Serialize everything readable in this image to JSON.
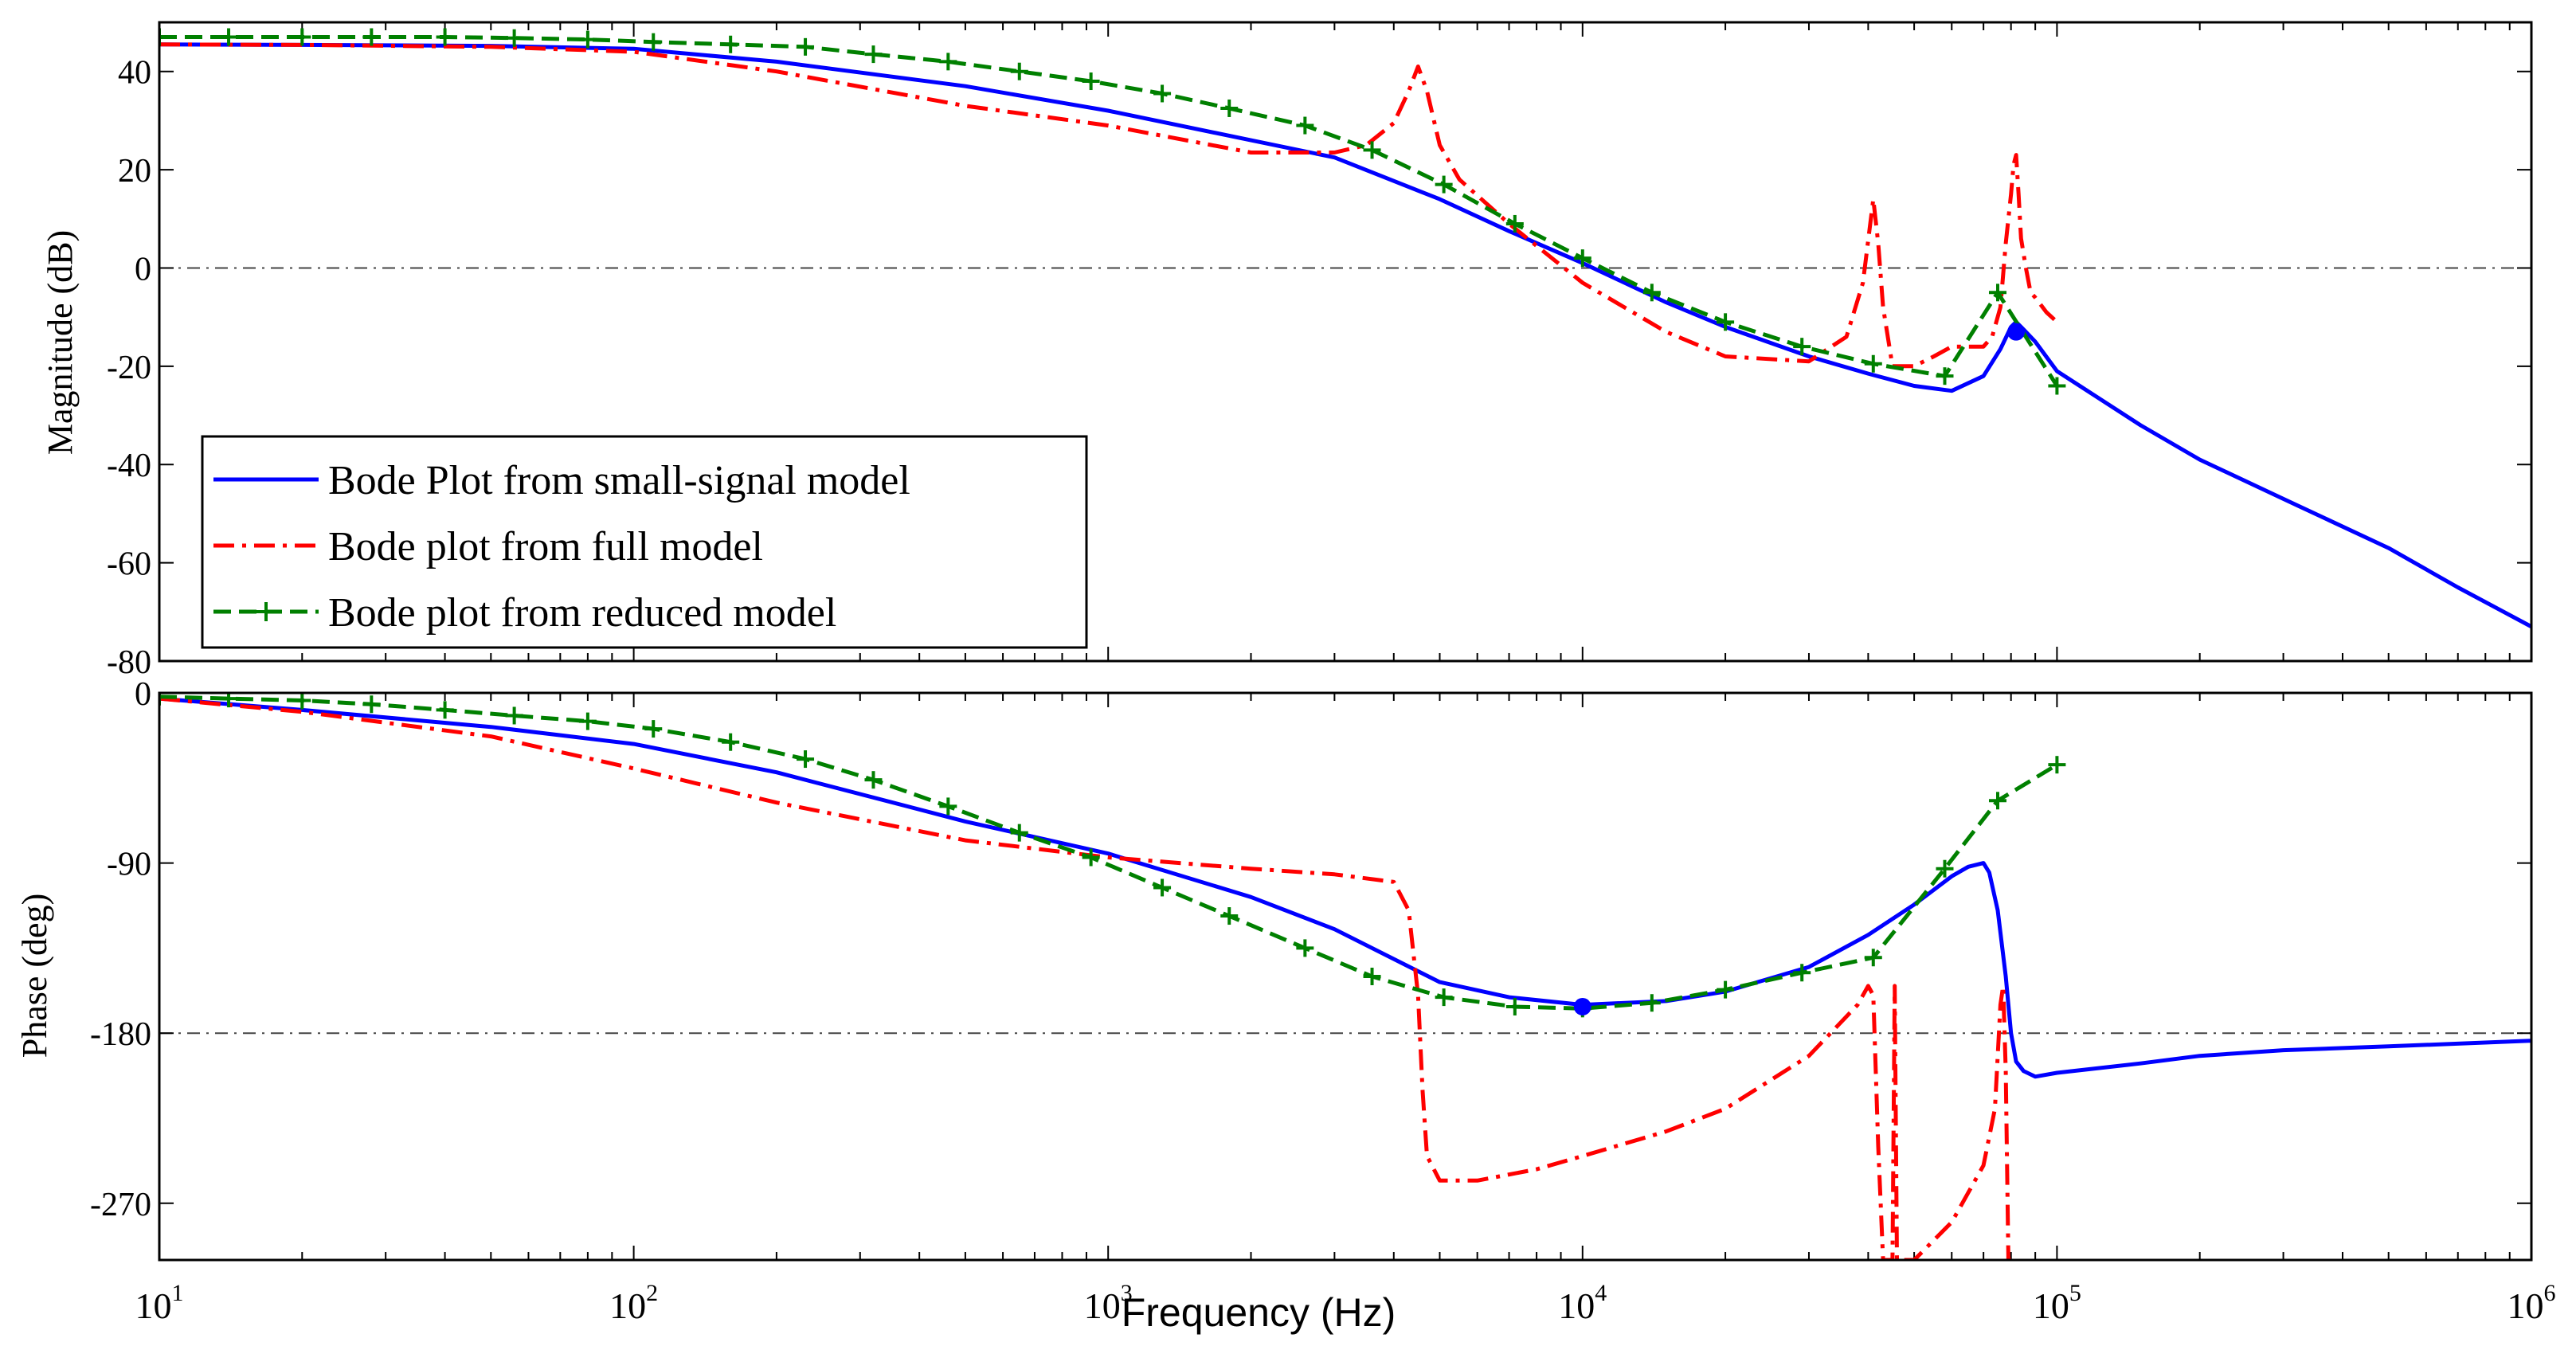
{
  "chart_data": [
    {
      "type": "line",
      "panel": "magnitude",
      "ylabel": "Magnitude (dB)",
      "ylim": [
        -80,
        50
      ],
      "yticks": [
        40,
        20,
        0,
        -20,
        -40,
        -60,
        -80
      ],
      "yticklabels": [
        "40",
        "20",
        "0",
        "-20",
        "-40",
        "-60",
        "-80"
      ],
      "reference_line": 0,
      "marker_point": {
        "x": 82000,
        "y": -13
      },
      "legend": {
        "placement": "bottom-left",
        "entries": [
          "Bode Plot from small-signal model",
          "Bode plot from full model",
          "Bode plot from reduced model"
        ]
      },
      "series": [
        {
          "name": "Bode Plot from small-signal model",
          "color": "#0000ff",
          "style": "solid",
          "x": [
            10,
            20,
            50,
            100,
            200,
            500,
            1000,
            2000,
            3000,
            5000,
            7000,
            10000,
            15000,
            20000,
            30000,
            40000,
            50000,
            60000,
            70000,
            76000,
            80000,
            82000,
            85000,
            90000,
            100000,
            150000,
            200000,
            300000,
            500000,
            700000,
            1000000
          ],
          "y": [
            45.5,
            45.4,
            45.2,
            44.6,
            42,
            37,
            32,
            26,
            22.5,
            14,
            7.5,
            1,
            -7,
            -12,
            -18,
            -21.5,
            -24,
            -25,
            -22,
            -16.5,
            -12,
            -11,
            -12.5,
            -15,
            -21,
            -32,
            -39,
            -47,
            -57,
            -65,
            -73
          ]
        },
        {
          "name": "Bode plot from full model",
          "color": "#ff0000",
          "style": "dashdot",
          "x": [
            10,
            20,
            50,
            100,
            200,
            500,
            1000,
            2000,
            3000,
            3500,
            4000,
            4300,
            4500,
            4700,
            5000,
            5500,
            7000,
            10000,
            15000,
            20000,
            30000,
            36000,
            39000,
            41000,
            42000,
            43000,
            45000,
            50000,
            55000,
            60000,
            65000,
            70000,
            73000,
            76000,
            78000,
            80000,
            81000,
            82000,
            83000,
            84000,
            86000,
            88000,
            90000,
            95000,
            100000
          ],
          "y": [
            45.5,
            45.4,
            45,
            44,
            40,
            33,
            29,
            23.5,
            23.5,
            25,
            29.5,
            36,
            41,
            36,
            25,
            18,
            9,
            -3,
            -13,
            -18,
            -19,
            -14,
            -3,
            14,
            5,
            -8,
            -20,
            -20,
            -18,
            -16,
            -16,
            -16,
            -14,
            -8,
            5,
            15,
            21,
            23,
            15,
            6,
            0,
            -5,
            -6,
            -9,
            -11
          ]
        },
        {
          "name": "Bode plot from reduced model",
          "color": "#008000",
          "style": "dashed-plus",
          "x": [
            10,
            14,
            20,
            28,
            40,
            56,
            80,
            110,
            160,
            230,
            320,
            460,
            650,
            920,
            1300,
            1800,
            2600,
            3600,
            5100,
            7200,
            10000,
            14000,
            20000,
            29000,
            41000,
            58000,
            75000,
            100000
          ],
          "y": [
            47,
            47,
            47,
            47,
            47,
            46.8,
            46.5,
            46,
            45.5,
            45,
            43.5,
            42,
            40,
            38,
            35.5,
            32.5,
            29,
            24,
            17,
            9,
            2,
            -5,
            -11,
            -16,
            -19.5,
            -22,
            -5,
            -24
          ]
        }
      ]
    },
    {
      "type": "line",
      "panel": "phase",
      "ylabel": "Phase (deg)",
      "xlabel": "Frequency  (Hz)",
      "xscale": "log",
      "xlim": [
        10,
        1000000
      ],
      "ylim": [
        -300,
        0
      ],
      "yticks": [
        0,
        -90,
        -180,
        -270
      ],
      "yticklabels": [
        "0",
        "-90",
        "-180",
        "-270"
      ],
      "reference_line": -180,
      "marker_point": {
        "x": 10000,
        "y": -166
      },
      "xticks": [
        10,
        100,
        1000,
        10000,
        100000,
        1000000
      ],
      "xticklabels": [
        {
          "base": "10",
          "exp": "1"
        },
        {
          "base": "10",
          "exp": "2"
        },
        {
          "base": "10",
          "exp": "3"
        },
        {
          "base": "10",
          "exp": "4"
        },
        {
          "base": "10",
          "exp": "5"
        },
        {
          "base": "10",
          "exp": "6"
        }
      ],
      "series": [
        {
          "name": "Bode Plot from small-signal model",
          "color": "#0000ff",
          "style": "solid",
          "x": [
            10,
            20,
            50,
            100,
            200,
            500,
            1000,
            2000,
            3000,
            5000,
            7000,
            10000,
            15000,
            20000,
            30000,
            40000,
            50000,
            60000,
            65000,
            70000,
            72000,
            75000,
            78000,
            80000,
            82000,
            85000,
            90000,
            100000,
            150000,
            200000,
            300000,
            500000,
            1000000
          ],
          "y": [
            -3,
            -9,
            -18,
            -27,
            -42,
            -68,
            -85,
            -108,
            -125,
            -153,
            -161,
            -165,
            -163,
            -158,
            -145,
            -128,
            -112,
            -97,
            -92,
            -90,
            -95,
            -115,
            -150,
            -180,
            -195,
            -200,
            -203,
            -201,
            -196,
            -192,
            -189,
            -187,
            -184
          ]
        },
        {
          "name": "Bode plot from full model",
          "color": "#ff0000",
          "style": "dashdot",
          "x": [
            10,
            20,
            50,
            100,
            200,
            500,
            1000,
            2000,
            3000,
            4000,
            4300,
            4500,
            4600,
            4700,
            5000,
            6000,
            8000,
            10000,
            15000,
            20000,
            30000,
            38000,
            40000,
            41000,
            42000,
            43000,
            44000,
            45000,
            45500,
            46000,
            47000,
            48000,
            50000,
            60000,
            70000,
            74000,
            76000,
            77000,
            78000,
            79000,
            80000
          ],
          "y": [
            -3,
            -10,
            -23,
            -40,
            -58,
            -78,
            -87,
            -93,
            -96,
            -100,
            -115,
            -160,
            -210,
            -245,
            -258,
            -258,
            -252,
            -245,
            -232,
            -220,
            -192,
            -165,
            -155,
            -160,
            -240,
            -300,
            -300,
            -300,
            -155,
            -300,
            -300,
            -300,
            -300,
            -280,
            -250,
            -220,
            -165,
            -155,
            -200,
            -300,
            -300
          ]
        },
        {
          "name": "Bode plot from reduced model",
          "color": "#008000",
          "style": "dashed-plus",
          "x": [
            10,
            14,
            20,
            28,
            40,
            56,
            80,
            110,
            160,
            230,
            320,
            460,
            650,
            920,
            1300,
            1800,
            2600,
            3600,
            5100,
            7200,
            10000,
            14000,
            20000,
            29000,
            41000,
            58000,
            75000,
            100000
          ],
          "y": [
            -2,
            -3,
            -4,
            -6,
            -9,
            -12,
            -15,
            -19,
            -26,
            -35,
            -46,
            -60,
            -74,
            -87,
            -103,
            -118,
            -135,
            -150,
            -161,
            -166,
            -167,
            -164,
            -157,
            -148,
            -140,
            -93,
            -57,
            -38
          ]
        }
      ]
    }
  ]
}
